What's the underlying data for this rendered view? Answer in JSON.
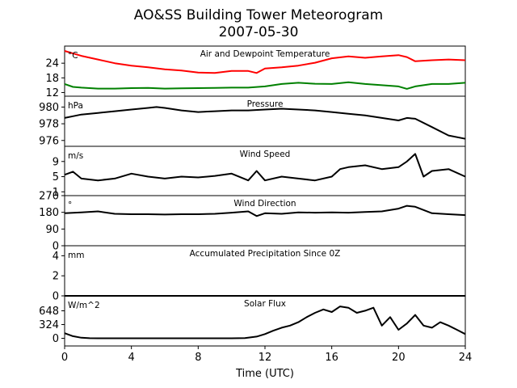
{
  "title_line1": "AO&SS Building Tower Meteorogram",
  "title_line2": "2007-05-30",
  "xlabel": "Time (UTC)",
  "chart_data": [
    {
      "type": "line",
      "title": "Air and Dewpoint Temperature",
      "unit": "°C",
      "x_range": [
        0,
        24
      ],
      "ylim": [
        10.5,
        31
      ],
      "yticks": [
        12,
        18,
        24
      ],
      "series": [
        {
          "color": "#ff0000",
          "x": [
            0,
            0.5,
            1,
            2,
            3,
            4,
            5,
            6,
            7,
            8,
            9,
            10,
            11,
            11.5,
            12,
            13,
            14,
            15,
            16,
            17,
            18,
            19,
            20,
            20.5,
            21,
            22,
            23,
            24
          ],
          "y": [
            29.0,
            28.0,
            27.0,
            25.5,
            24.0,
            23.0,
            22.3,
            21.5,
            21.0,
            20.2,
            20.0,
            20.8,
            20.8,
            20.0,
            21.8,
            22.3,
            23.0,
            24.2,
            26.0,
            26.8,
            26.2,
            26.8,
            27.3,
            26.5,
            24.8,
            25.2,
            25.5,
            25.2
          ]
        },
        {
          "color": "#008000",
          "x": [
            0,
            0.5,
            1,
            2,
            3,
            4,
            5,
            6,
            7,
            8,
            9,
            10,
            11,
            12,
            13,
            14,
            15,
            16,
            17,
            18,
            19,
            20,
            20.5,
            21,
            22,
            23,
            24
          ],
          "y": [
            15.5,
            14.3,
            14.0,
            13.6,
            13.6,
            13.8,
            13.9,
            13.6,
            13.7,
            13.8,
            13.9,
            14.0,
            14.0,
            14.5,
            15.5,
            16.0,
            15.6,
            15.5,
            16.2,
            15.5,
            15.0,
            14.5,
            13.5,
            14.5,
            15.5,
            15.5,
            16.0
          ]
        }
      ]
    },
    {
      "type": "line",
      "title": "Pressure",
      "unit": "hPa",
      "x_range": [
        0,
        24
      ],
      "ylim": [
        975.3,
        981.3
      ],
      "yticks": [
        976,
        978,
        980
      ],
      "series": [
        {
          "color": "#000000",
          "x": [
            0,
            0.5,
            1,
            2,
            3,
            4,
            5,
            5.5,
            6,
            7,
            8,
            9,
            10,
            11,
            12,
            13,
            14,
            15,
            16,
            17,
            18,
            19,
            20,
            20.5,
            21,
            22,
            23,
            24
          ],
          "y": [
            978.7,
            978.9,
            979.1,
            979.3,
            979.5,
            979.7,
            979.9,
            980.0,
            979.9,
            979.6,
            979.4,
            979.5,
            979.6,
            979.6,
            979.7,
            979.8,
            979.7,
            979.6,
            979.4,
            979.2,
            979.0,
            978.7,
            978.4,
            978.7,
            978.6,
            977.6,
            976.6,
            976.2
          ]
        }
      ]
    },
    {
      "type": "line",
      "title": "Wind Speed",
      "unit": "m/s",
      "x_range": [
        0,
        24
      ],
      "ylim": [
        0,
        13
      ],
      "yticks": [
        1,
        5,
        9
      ],
      "series": [
        {
          "color": "#000000",
          "x": [
            0,
            0.5,
            1,
            2,
            3,
            4,
            5,
            6,
            7,
            8,
            9,
            10,
            11,
            11.5,
            12,
            13,
            14,
            15,
            16,
            16.5,
            17,
            18,
            19,
            20,
            20.5,
            21,
            21.5,
            22,
            23,
            24
          ],
          "y": [
            5.5,
            6.3,
            4.5,
            4.0,
            4.5,
            5.8,
            5.0,
            4.5,
            5.0,
            4.8,
            5.2,
            5.8,
            4.0,
            6.5,
            4.0,
            5.0,
            4.5,
            4.0,
            5.0,
            7.0,
            7.5,
            8.0,
            7.0,
            7.5,
            9.0,
            11.0,
            5.0,
            6.5,
            7.0,
            5.0
          ]
        }
      ]
    },
    {
      "type": "line",
      "title": "Wind Direction",
      "unit": "°",
      "x_range": [
        0,
        24
      ],
      "ylim": [
        0,
        270
      ],
      "yticks": [
        0,
        90,
        180,
        270
      ],
      "series": [
        {
          "color": "#000000",
          "x": [
            0,
            1,
            2,
            3,
            4,
            5,
            6,
            7,
            8,
            9,
            10,
            11,
            11.5,
            12,
            13,
            14,
            15,
            16,
            17,
            18,
            19,
            20,
            20.5,
            21,
            22,
            23,
            24
          ],
          "y": [
            175,
            180,
            185,
            172,
            170,
            170,
            168,
            170,
            170,
            172,
            178,
            185,
            160,
            175,
            172,
            180,
            178,
            180,
            178,
            182,
            185,
            200,
            215,
            210,
            175,
            170,
            165
          ]
        }
      ]
    },
    {
      "type": "line",
      "title": "Accumulated Precipitation Since 0Z",
      "unit": "mm",
      "x_range": [
        0,
        24
      ],
      "ylim": [
        0,
        5
      ],
      "yticks": [
        0,
        2,
        4
      ],
      "series": [
        {
          "color": "#000000",
          "x": [
            0,
            24
          ],
          "y": [
            0,
            0
          ]
        }
      ]
    },
    {
      "type": "line",
      "title": "Solar Flux",
      "unit": "W/m^2",
      "x_range": [
        0,
        24
      ],
      "ylim": [
        -180,
        1000
      ],
      "yticks": [
        0,
        324,
        648
      ],
      "series": [
        {
          "color": "#000000",
          "x": [
            0,
            0.5,
            1,
            1.5,
            2,
            4,
            6,
            8,
            10,
            10.8,
            11.5,
            12,
            12.5,
            13,
            13.5,
            14,
            14.5,
            15,
            15.5,
            16,
            16.5,
            17,
            17.5,
            18,
            18.5,
            19,
            19.5,
            20,
            20.5,
            21,
            21.5,
            22,
            22.5,
            23,
            23.5,
            24
          ],
          "y": [
            120,
            50,
            15,
            2,
            0,
            0,
            0,
            0,
            0,
            5,
            40,
            100,
            180,
            250,
            300,
            380,
            500,
            600,
            680,
            620,
            750,
            720,
            600,
            650,
            720,
            300,
            500,
            200,
            350,
            550,
            300,
            250,
            380,
            300,
            200,
            100
          ]
        }
      ]
    }
  ],
  "xticks": [
    0,
    4,
    8,
    12,
    16,
    20,
    24
  ]
}
